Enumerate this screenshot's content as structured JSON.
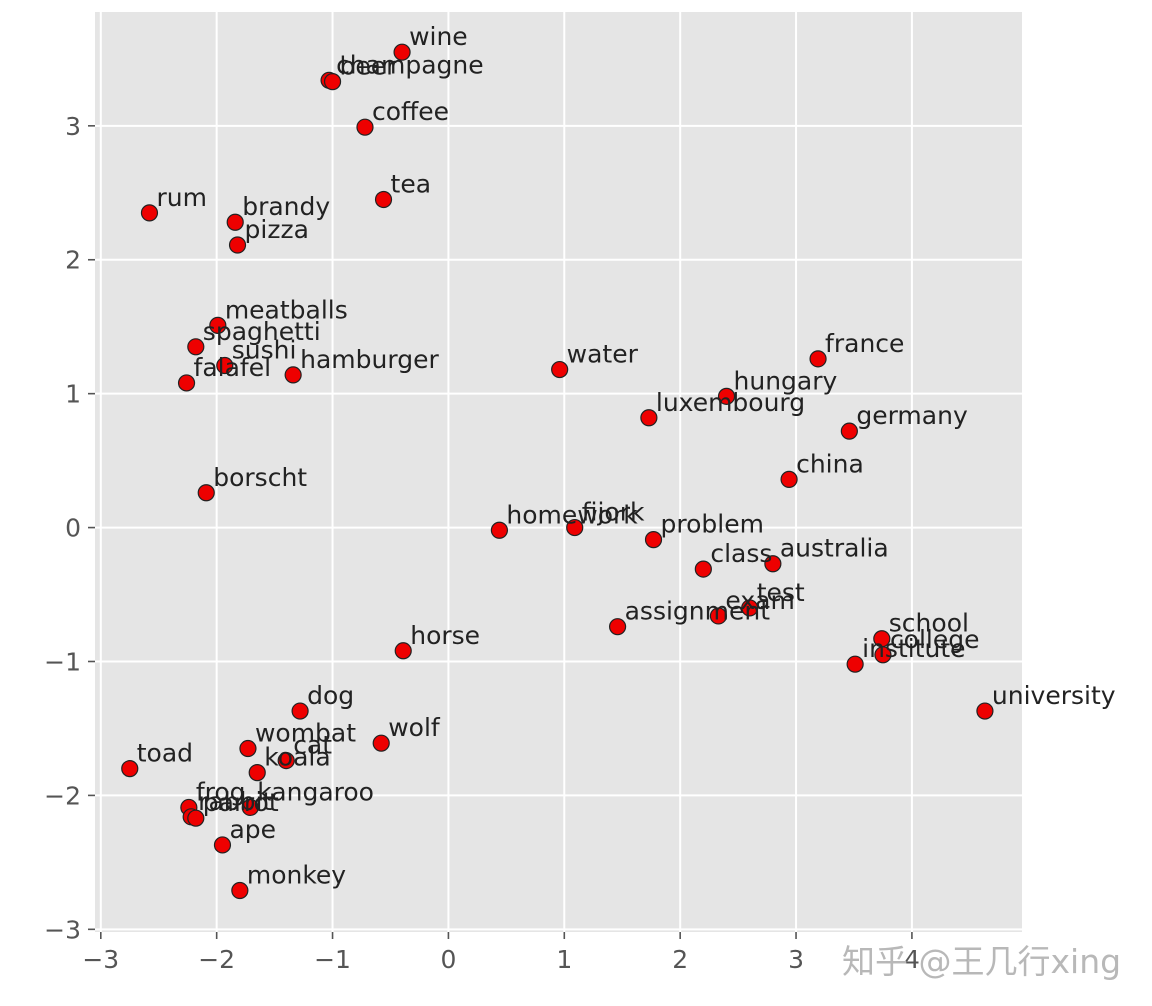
{
  "chart_data": {
    "type": "scatter",
    "title": "",
    "xlabel": "",
    "ylabel": "",
    "xlim": [
      -3.05,
      4.95
    ],
    "ylim": [
      -3.02,
      3.85
    ],
    "grid": true,
    "xticks": [
      -3,
      -2,
      -1,
      0,
      1,
      2,
      3,
      4
    ],
    "yticks": [
      -3,
      -2,
      -1,
      0,
      1,
      2,
      3
    ],
    "tick_labels_x": [
      "−3",
      "−2",
      "−1",
      "0",
      "1",
      "2",
      "3",
      "4"
    ],
    "tick_labels_y": [
      "−3",
      "−2",
      "−1",
      "0",
      "1",
      "2",
      "3"
    ],
    "colors": {
      "background": "#e5e5e5",
      "grid": "#ffffff",
      "point": "#ee0000",
      "edge": "#222222"
    },
    "points": [
      {
        "label": "wine",
        "x": -0.4,
        "y": 3.55
      },
      {
        "label": "champagne",
        "x": -1.03,
        "y": 3.34
      },
      {
        "label": "beer",
        "x": -1.0,
        "y": 3.33
      },
      {
        "label": "coffee",
        "x": -0.72,
        "y": 2.99
      },
      {
        "label": "tea",
        "x": -0.56,
        "y": 2.45
      },
      {
        "label": "rum",
        "x": -2.58,
        "y": 2.35
      },
      {
        "label": "brandy",
        "x": -1.84,
        "y": 2.28
      },
      {
        "label": "pizza",
        "x": -1.82,
        "y": 2.11
      },
      {
        "label": "meatballs",
        "x": -1.99,
        "y": 1.51
      },
      {
        "label": "spaghetti",
        "x": -2.18,
        "y": 1.35
      },
      {
        "label": "sushi",
        "x": -1.93,
        "y": 1.21
      },
      {
        "label": "falafel",
        "x": -2.26,
        "y": 1.08
      },
      {
        "label": "hamburger",
        "x": -1.34,
        "y": 1.14
      },
      {
        "label": "borscht",
        "x": -2.09,
        "y": 0.26
      },
      {
        "label": "water",
        "x": 0.96,
        "y": 1.18
      },
      {
        "label": "france",
        "x": 3.19,
        "y": 1.26
      },
      {
        "label": "hungary",
        "x": 2.4,
        "y": 0.98
      },
      {
        "label": "luxembourg",
        "x": 1.73,
        "y": 0.82
      },
      {
        "label": "germany",
        "x": 3.46,
        "y": 0.72
      },
      {
        "label": "china",
        "x": 2.94,
        "y": 0.36
      },
      {
        "label": "homework",
        "x": 0.44,
        "y": -0.02
      },
      {
        "label": "fijork",
        "x": 1.09,
        "y": 0.0
      },
      {
        "label": "problem",
        "x": 1.77,
        "y": -0.09
      },
      {
        "label": "class",
        "x": 2.2,
        "y": -0.31
      },
      {
        "label": "australia",
        "x": 2.8,
        "y": -0.27
      },
      {
        "label": "test",
        "x": 2.6,
        "y": -0.6
      },
      {
        "label": "exam",
        "x": 2.33,
        "y": -0.66
      },
      {
        "label": "assignment",
        "x": 1.46,
        "y": -0.74
      },
      {
        "label": "school",
        "x": 3.74,
        "y": -0.83
      },
      {
        "label": "college",
        "x": 3.75,
        "y": -0.95
      },
      {
        "label": "institute",
        "x": 3.51,
        "y": -1.02
      },
      {
        "label": "university",
        "x": 4.63,
        "y": -1.37
      },
      {
        "label": "horse",
        "x": -0.39,
        "y": -0.92
      },
      {
        "label": "dog",
        "x": -1.28,
        "y": -1.37
      },
      {
        "label": "wolf",
        "x": -0.58,
        "y": -1.61
      },
      {
        "label": "wombat",
        "x": -1.73,
        "y": -1.65
      },
      {
        "label": "cat",
        "x": -1.4,
        "y": -1.74
      },
      {
        "label": "koala",
        "x": -1.65,
        "y": -1.83
      },
      {
        "label": "toad",
        "x": -2.75,
        "y": -1.8
      },
      {
        "label": "frog",
        "x": -2.24,
        "y": -2.09
      },
      {
        "label": "kangaroo",
        "x": -1.71,
        "y": -2.09
      },
      {
        "label": "rabbit",
        "x": -2.22,
        "y": -2.16
      },
      {
        "label": "parrot",
        "x": -2.18,
        "y": -2.17
      },
      {
        "label": "ape",
        "x": -1.95,
        "y": -2.37
      },
      {
        "label": "monkey",
        "x": -1.8,
        "y": -2.71
      }
    ]
  },
  "watermark": "知乎 @王几行xing"
}
